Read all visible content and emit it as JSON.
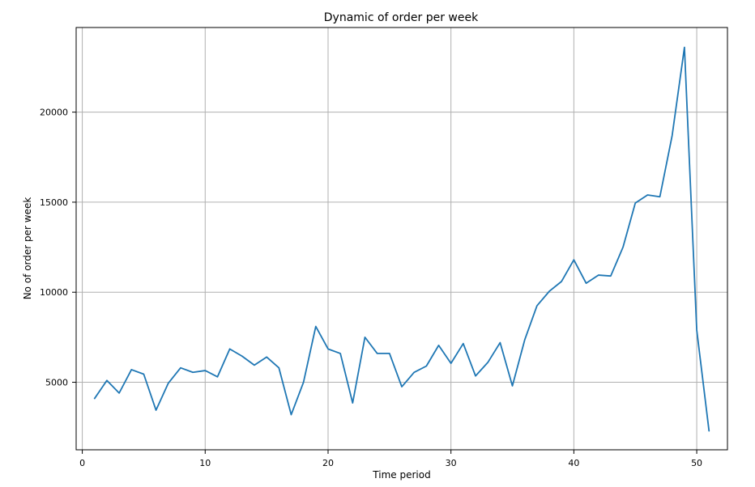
{
  "chart_data": {
    "type": "line",
    "title": "Dynamic of order per week",
    "xlabel": "Time period",
    "ylabel": "No of order per week",
    "xlim": [
      -0.5,
      52.5
    ],
    "ylim": [
      1250,
      24700
    ],
    "xticks": [
      0,
      10,
      20,
      30,
      40,
      50
    ],
    "yticks": [
      5000,
      10000,
      15000,
      20000
    ],
    "xtick_labels": [
      "0",
      "10",
      "20",
      "30",
      "40",
      "50"
    ],
    "ytick_labels": [
      "5000",
      "10000",
      "15000",
      "20000"
    ],
    "grid": true,
    "series": [
      {
        "color": "#1f77b4",
        "x": [
          1,
          2,
          3,
          4,
          5,
          6,
          7,
          8,
          9,
          10,
          11,
          12,
          13,
          14,
          15,
          16,
          17,
          18,
          19,
          20,
          21,
          22,
          23,
          24,
          25,
          26,
          27,
          28,
          29,
          30,
          31,
          32,
          33,
          34,
          35,
          36,
          37,
          38,
          39,
          40,
          41,
          42,
          43,
          44,
          45,
          46,
          47,
          48,
          49,
          50,
          51
        ],
        "values": [
          4100,
          5100,
          4400,
          5700,
          5450,
          3450,
          4950,
          5800,
          5550,
          5650,
          5300,
          6850,
          6450,
          5950,
          6400,
          5800,
          3200,
          5000,
          8100,
          6850,
          6600,
          3850,
          7500,
          6600,
          6600,
          4750,
          5550,
          5900,
          7050,
          6050,
          7150,
          5350,
          6100,
          7200,
          4800,
          7350,
          9250,
          10050,
          10600,
          11800,
          10500,
          10950,
          10900,
          12500,
          14950,
          15400,
          15300,
          18700,
          23600,
          7900,
          2300
        ]
      }
    ]
  }
}
